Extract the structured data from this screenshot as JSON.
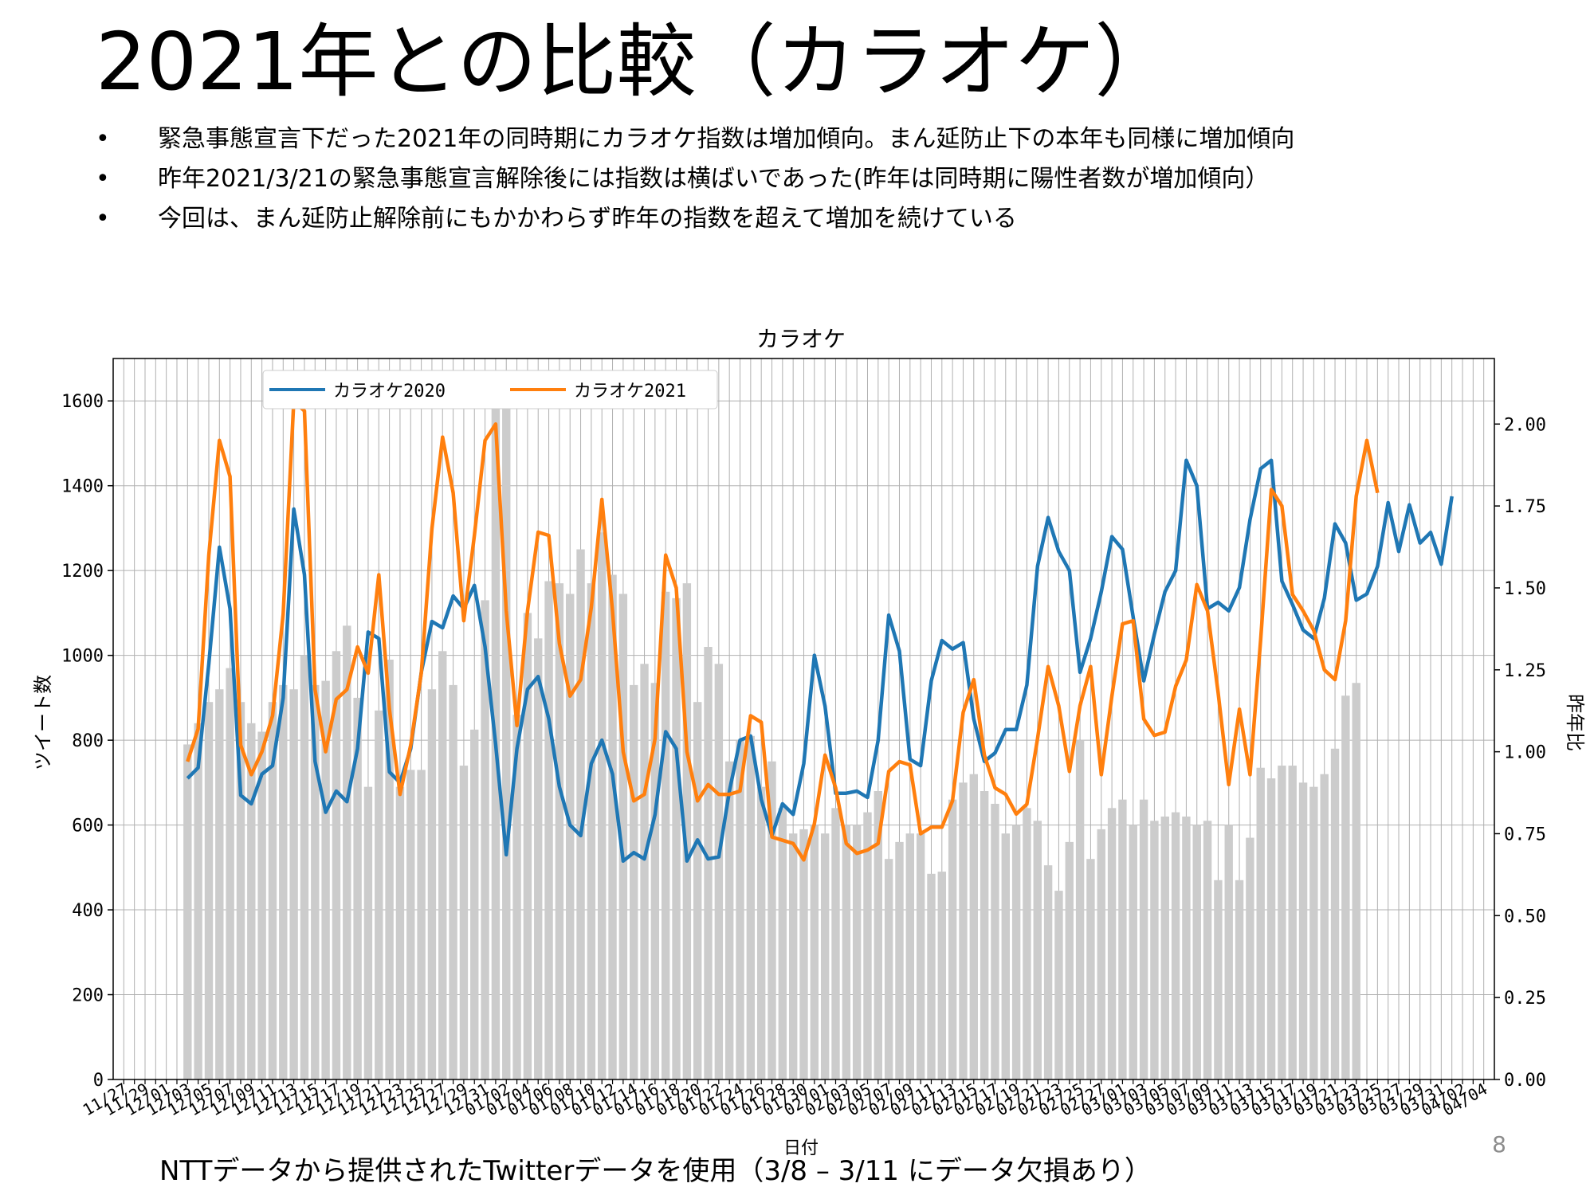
{
  "slide": {
    "title": "2021年との比較（カラオケ）",
    "bullets": [
      "緊急事態宣言下だった2021年の同時期にカラオケ指数は増加傾向。まん延防止下の本年も同様に増加傾向",
      "昨年2021/3/21の緊急事態宣言解除後には指数は横ばいであった(昨年は同時期に陽性者数が増加傾向）",
      "今回は、まん延防止解除前にもかかわらず昨年の指数を超えて増加を続けている"
    ],
    "footnote": "NTTデータから提供されたTwitterデータを使用（3/8 – 3/11 にデータ欠損あり）",
    "page_number": "8"
  },
  "chart_data": {
    "type": "line",
    "title": "カラオケ",
    "xlabel": "日付",
    "ylabel": "ツイート数",
    "y2label": "昨年比",
    "ylim": [
      0,
      1700
    ],
    "y2lim": [
      0,
      2.2
    ],
    "yticks": [
      0,
      200,
      400,
      600,
      800,
      1000,
      1200,
      1400,
      1600
    ],
    "y2ticks": [
      "0.00",
      "0.25",
      "0.50",
      "0.75",
      "1.00",
      "1.25",
      "1.50",
      "1.75",
      "2.00"
    ],
    "x_tick_labels": [
      "11/27",
      "11/29",
      "12/01",
      "12/03",
      "12/05",
      "12/07",
      "12/09",
      "12/11",
      "12/13",
      "12/15",
      "12/17",
      "12/19",
      "12/21",
      "12/23",
      "12/25",
      "12/27",
      "12/29",
      "12/31",
      "01/02",
      "01/04",
      "01/06",
      "01/08",
      "01/10",
      "01/12",
      "01/14",
      "01/16",
      "01/18",
      "01/20",
      "01/22",
      "01/24",
      "01/26",
      "01/28",
      "01/30",
      "02/01",
      "02/03",
      "02/05",
      "02/07",
      "02/09",
      "02/11",
      "02/13",
      "02/15",
      "02/17",
      "02/19",
      "02/21",
      "02/23",
      "02/25",
      "02/27",
      "03/01",
      "03/03",
      "03/05",
      "03/07",
      "03/09",
      "03/11",
      "03/13",
      "03/15",
      "03/17",
      "03/19",
      "03/21",
      "03/23",
      "03/25",
      "03/27",
      "03/29",
      "03/31",
      "04/02",
      "04/04"
    ],
    "x_start_date": "11/27",
    "grid": true,
    "legend_position": "top-left",
    "series": [
      {
        "name": "カラオケ2020",
        "color": "#1f77b4",
        "start_index": 6,
        "values": [
          710,
          735,
          980,
          1255,
          1110,
          670,
          650,
          720,
          740,
          900,
          1345,
          1190,
          750,
          630,
          680,
          655,
          780,
          1055,
          1040,
          725,
          700,
          780,
          960,
          1080,
          1065,
          1140,
          1110,
          1165,
          1020,
          790,
          530,
          780,
          920,
          950,
          850,
          690,
          600,
          575,
          745,
          800,
          720,
          515,
          535,
          520,
          625,
          820,
          780,
          515,
          565,
          520,
          525,
          680,
          800,
          810,
          660,
          575,
          650,
          625,
          745,
          1000,
          880,
          675,
          675,
          680,
          665,
          800,
          1095,
          1010,
          755,
          740,
          940,
          1035,
          1015,
          1030,
          850,
          750,
          770,
          825,
          825,
          930,
          1210,
          1325,
          1245,
          1200,
          960,
          1040,
          1150,
          1280,
          1250,
          1090,
          940,
          1050,
          1150,
          1200,
          1460,
          1400,
          1110,
          1125,
          1105,
          1160,
          1320,
          1440,
          1460,
          1175,
          1120,
          1060,
          1040,
          1135,
          1310,
          1265,
          1130,
          1145,
          1210,
          1360,
          1245,
          1355,
          1265,
          1290,
          1215,
          1375
        ]
      },
      {
        "name": "カラオケ2021",
        "color": "#ff7f0e",
        "start_index": 6,
        "values": [
          0.97,
          1.07,
          1.6,
          1.95,
          1.84,
          1.02,
          0.93,
          1.0,
          1.11,
          1.42,
          2.07,
          2.04,
          1.19,
          1.0,
          1.16,
          1.19,
          1.32,
          1.24,
          1.54,
          1.13,
          0.87,
          1.02,
          1.24,
          1.68,
          1.96,
          1.79,
          1.4,
          1.66,
          1.95,
          2.0,
          1.43,
          1.08,
          1.43,
          1.67,
          1.66,
          1.33,
          1.17,
          1.22,
          1.44,
          1.77,
          1.43,
          1.0,
          0.85,
          0.87,
          1.04,
          1.6,
          1.5,
          1.0,
          0.85,
          0.9,
          0.87,
          0.87,
          0.88,
          1.11,
          1.09,
          0.74,
          0.73,
          0.72,
          0.67,
          0.78,
          0.99,
          0.89,
          0.72,
          0.69,
          0.7,
          0.72,
          0.94,
          0.97,
          0.96,
          0.75,
          0.77,
          0.77,
          0.85,
          1.12,
          1.22,
          0.99,
          0.89,
          0.87,
          0.81,
          0.84,
          1.04,
          1.26,
          1.14,
          0.94,
          1.14,
          1.26,
          0.93,
          1.17,
          1.39,
          1.4,
          1.1,
          1.05,
          1.06,
          1.2,
          1.28,
          1.51,
          1.43,
          1.18,
          0.9,
          1.13,
          0.93,
          1.34,
          1.8,
          1.75,
          1.48,
          1.43,
          1.37,
          1.25,
          1.22,
          1.4,
          1.78,
          1.95,
          1.79
        ]
      }
    ],
    "bars": {
      "name": "ツイート数",
      "color": "#cccccc",
      "start_index": 6,
      "values": [
        790,
        840,
        890,
        920,
        970,
        890,
        840,
        820,
        890,
        930,
        920,
        1000,
        930,
        940,
        1010,
        1070,
        900,
        690,
        870,
        990,
        690,
        730,
        730,
        920,
        1010,
        930,
        740,
        825,
        1130,
        1590,
        1590,
        860,
        1100,
        1040,
        1175,
        1170,
        1145,
        1250,
        1170,
        1290,
        1190,
        1145,
        930,
        980,
        935,
        1150,
        1135,
        1170,
        890,
        1020,
        980,
        750,
        800,
        810,
        690,
        750,
        640,
        580,
        590,
        600,
        580,
        640,
        600,
        600,
        630,
        680,
        520,
        560,
        580,
        580,
        485,
        490,
        660,
        700,
        720,
        680,
        650,
        580,
        600,
        640,
        610,
        505,
        445,
        560,
        800,
        520,
        590,
        640,
        660,
        600,
        660,
        610,
        620,
        630,
        620,
        600,
        610,
        470,
        600,
        470,
        570,
        735,
        710,
        740,
        740,
        700,
        690,
        720,
        780,
        905,
        935
      ]
    }
  }
}
